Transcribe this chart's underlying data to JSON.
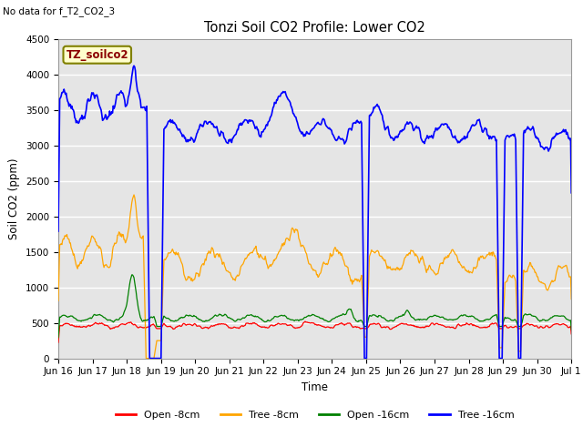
{
  "title": "Tonzi Soil CO2 Profile: Lower CO2",
  "subtitle": "No data for f_T2_CO2_3",
  "ylabel": "Soil CO2 (ppm)",
  "xlabel": "Time",
  "legend_label": "TZ_soilco2",
  "ylim": [
    0,
    4500
  ],
  "background_color": "#ffffff",
  "plot_bg_color": "#e5e5e5",
  "series": {
    "open_8cm": {
      "color": "red",
      "label": "Open -8cm"
    },
    "tree_8cm": {
      "color": "orange",
      "label": "Tree -8cm"
    },
    "open_16cm": {
      "color": "green",
      "label": "Open -16cm"
    },
    "tree_16cm": {
      "color": "blue",
      "label": "Tree -16cm"
    }
  },
  "x_ticks": [
    "Jun 16",
    "Jun 17",
    "Jun 18",
    "Jun 19",
    "Jun 20",
    "Jun 21",
    "Jun 22",
    "Jun 23",
    "Jun 24",
    "Jun 25",
    "Jun 26",
    "Jun 27",
    "Jun 28",
    "Jun 29",
    "Jun 30",
    "Jul 1"
  ],
  "yticks": [
    0,
    500,
    1000,
    1500,
    2000,
    2500,
    3000,
    3500,
    4000,
    4500
  ],
  "grid_color": "#ffffff",
  "grid_lw": 1.0
}
